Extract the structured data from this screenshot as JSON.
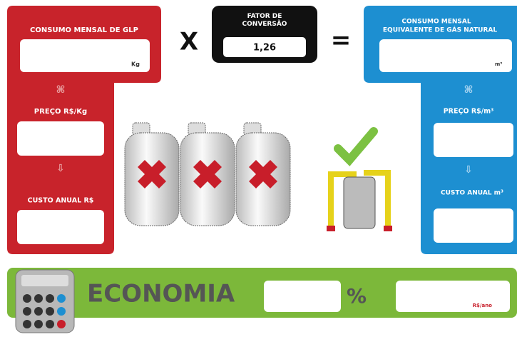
{
  "glp": {
    "title": "CONSUMO MENSAL DE GLP",
    "unit": "Kg",
    "price_label": "PREÇO R$/Kg",
    "cost_label": "CUSTO ANUAL R$"
  },
  "operator_multiply": "X",
  "conversion": {
    "title": "FATOR DE CONVERSÃO",
    "value": "1,26"
  },
  "operator_equals": "=",
  "natural_gas": {
    "title_line1": "CONSUMO MENSAL",
    "title_line2": "EQUIVALENTE DE GÁS NATURAL",
    "unit": "m³",
    "price_label": "PREÇO R$/m³",
    "cost_label": "CUSTO ANUAL m³"
  },
  "savings": {
    "title": "ECONOMIA",
    "percent_unit": "%",
    "money_unit": "R$/ano"
  }
}
